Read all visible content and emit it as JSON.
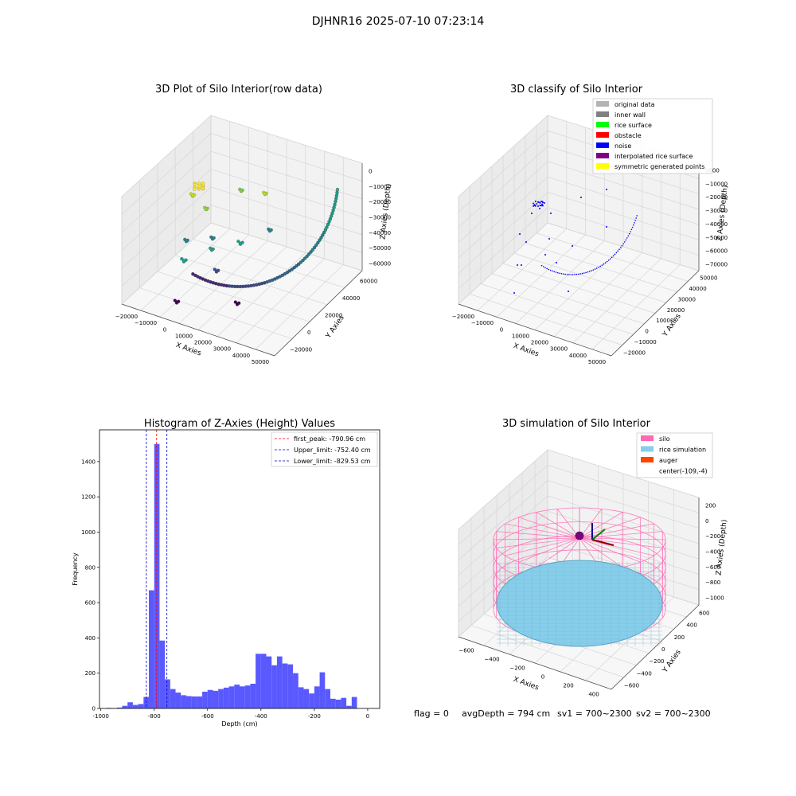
{
  "figure": {
    "suptitle": "DJHNR16 2025-07-10 07:23:14",
    "footer": {
      "flag": "flag = 0",
      "avg_depth": "avgDepth = 794 cm",
      "sv1": "sv1 = 700~2300",
      "sv2": "sv2 = 700~2300"
    }
  },
  "colors": {
    "hist_bar": "#5050ff",
    "first_peak_line": "#ff0000",
    "limit_line": "#0000cc",
    "pane_left": "#ebebeb",
    "pane_right": "#f2f2f2",
    "pane_floor": "#f7f7f7",
    "silo": "#ff69b4",
    "rice": "#87ceeb",
    "auger": "#ff4500",
    "noise": "#0000ff"
  },
  "chart_data": [
    {
      "id": "raw3d",
      "type": "scatter",
      "title": "3D Plot of Silo Interior(row data)",
      "xlabel": "X Axies",
      "ylabel": "Y Axies",
      "zlabel": "Z Axies (Depth)",
      "xticks": [
        "−20000",
        "−10000",
        "0",
        "10000",
        "20000",
        "30000",
        "40000",
        "50000"
      ],
      "yticks": [
        "−20000",
        "0",
        "20000",
        "40000",
        "60000"
      ],
      "zticks": [
        "0",
        "−10000",
        "−20000",
        "−30000",
        "−40000",
        "−50000",
        "−60000"
      ],
      "colormap": "viridis",
      "grid": true
    },
    {
      "id": "classify3d",
      "type": "scatter",
      "title": "3D classify of Silo Interior",
      "xlabel": "X Axies",
      "ylabel": "Y Axies",
      "zlabel": "Z Axies (Depth)",
      "xticks": [
        "−20000",
        "−10000",
        "0",
        "10000",
        "20000",
        "30000",
        "40000",
        "50000"
      ],
      "yticks": [
        "−20000",
        "−10000",
        "0",
        "10000",
        "20000",
        "30000",
        "40000",
        "50000"
      ],
      "zticks": [
        "0000",
        "−10000",
        "−20000",
        "−30000",
        "−40000",
        "−50000",
        "−60000",
        "−70000"
      ],
      "legend_position": "upper-right",
      "legend": [
        {
          "label": "original data",
          "color": "#b3b3b3"
        },
        {
          "label": "inner wall",
          "color": "#808080"
        },
        {
          "label": "rice surface",
          "color": "#00ff00"
        },
        {
          "label": "obstacle",
          "color": "#ff0000"
        },
        {
          "label": "noise",
          "color": "#0000ff"
        },
        {
          "label": "interpolated rice surface",
          "color": "#800080"
        },
        {
          "label": "symmetric generated points",
          "color": "#ffff00"
        }
      ],
      "grid": true
    },
    {
      "id": "histogram",
      "type": "bar",
      "title": "Histogram of Z-Axies (Height) Values",
      "xlabel": "Depth (cm)",
      "ylabel": "Frequency",
      "xlim": [
        -1005,
        45
      ],
      "ylim": [
        0,
        1580
      ],
      "xticks": [
        -1000,
        -800,
        -600,
        -400,
        -200,
        0
      ],
      "yticks": [
        0,
        200,
        400,
        600,
        800,
        1000,
        1200,
        1400
      ],
      "bin_start": -1000,
      "bin_width": 20,
      "values": [
        0,
        3,
        2,
        5,
        15,
        35,
        20,
        25,
        65,
        670,
        1500,
        385,
        165,
        110,
        90,
        75,
        70,
        68,
        68,
        95,
        105,
        100,
        110,
        118,
        125,
        135,
        125,
        130,
        140,
        310,
        310,
        295,
        245,
        295,
        255,
        250,
        200,
        120,
        110,
        85,
        125,
        205,
        110,
        55,
        50,
        60,
        15,
        65
      ],
      "vlines": [
        {
          "label": "first_peak: -790.96 cm",
          "x": -790.96,
          "style": "first_peak"
        },
        {
          "label": "Upper_limit: -752.40 cm",
          "x": -752.4,
          "style": "limit"
        },
        {
          "label": "Lower_limit: -829.53 cm",
          "x": -829.53,
          "style": "limit"
        }
      ],
      "legend_position": "upper-right",
      "grid": false
    },
    {
      "id": "sim3d",
      "type": "scatter",
      "title": "3D simulation of Silo Interior",
      "xlabel": "X Axies",
      "ylabel": "Y Axies",
      "zlabel": "Z Axies (Depth)",
      "xticks": [
        "−600",
        "−400",
        "−200",
        "0",
        "200",
        "400"
      ],
      "yticks": [
        "−600",
        "−400",
        "−200",
        "0",
        "200",
        "400",
        "600"
      ],
      "zticks": [
        "200",
        "0",
        "−200",
        "−400",
        "−600",
        "−800",
        "−1000"
      ],
      "legend_position": "upper-right",
      "legend": [
        {
          "label": "silo",
          "color": "#ff69b4"
        },
        {
          "label": "rice simulation",
          "color": "#87ceeb"
        },
        {
          "label": "auger",
          "color": "#ff4500"
        },
        {
          "label": "center(-109,-4)",
          "color": ""
        }
      ],
      "grid": true
    }
  ]
}
